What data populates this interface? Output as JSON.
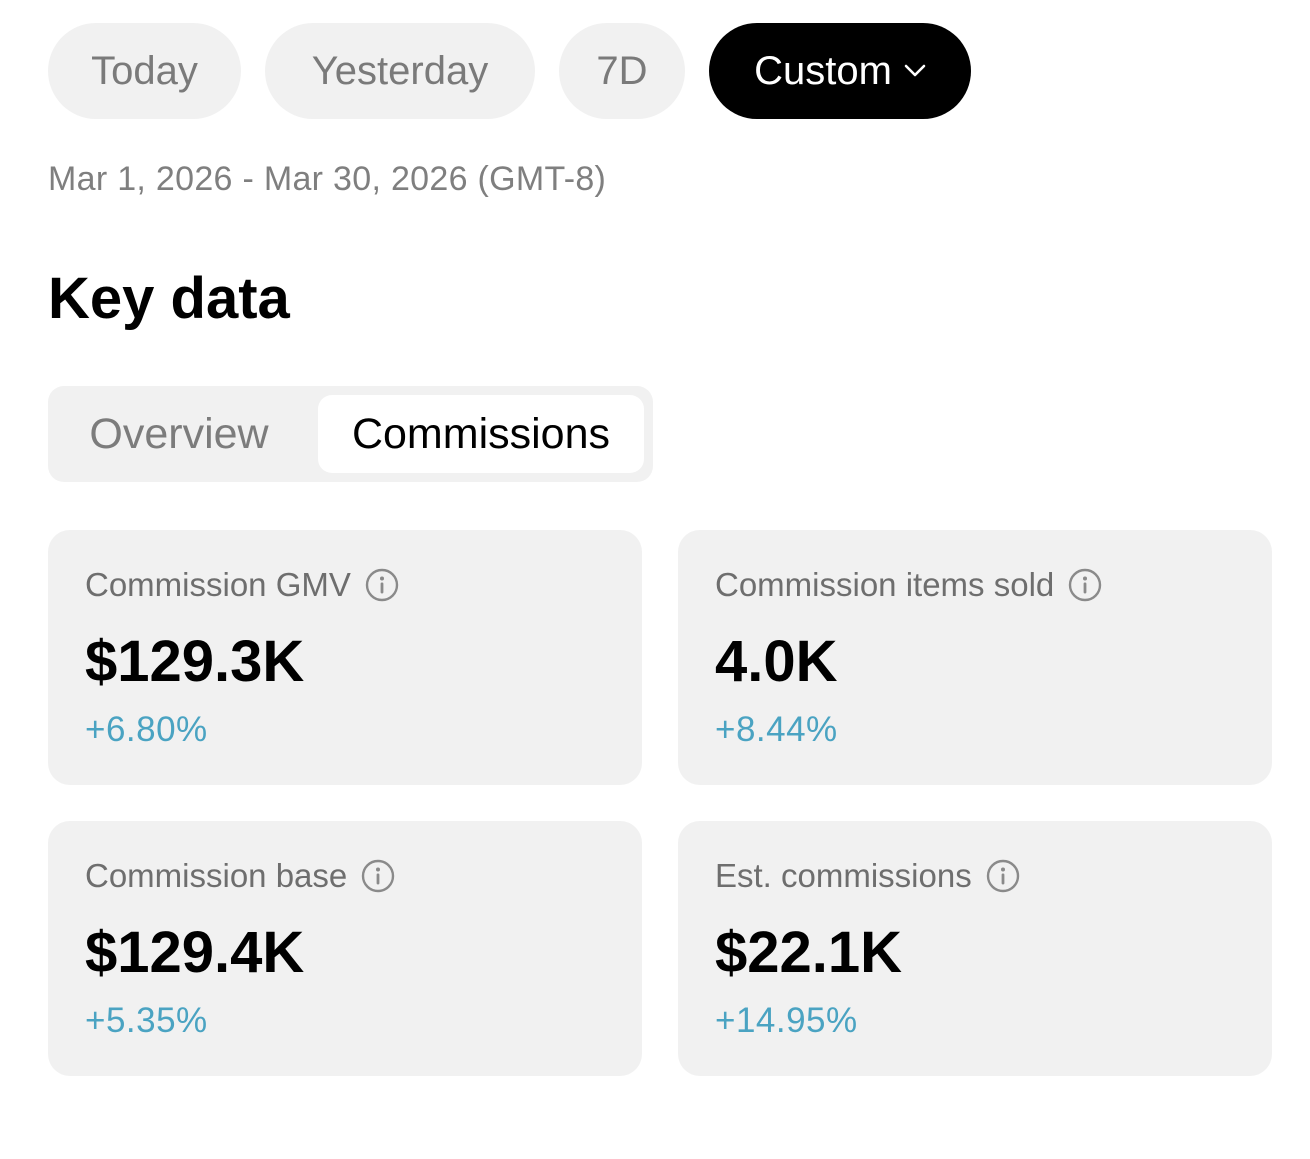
{
  "filters": {
    "today": "Today",
    "yesterday": "Yesterday",
    "seven_days": "7D",
    "custom": "Custom",
    "active": "Custom"
  },
  "date_range": "Mar 1, 2026 - Mar 30, 2026 (GMT-8)",
  "section_title": "Key data",
  "tabs": {
    "overview": "Overview",
    "commissions": "Commissions",
    "active": "Commissions"
  },
  "metrics": [
    {
      "label": "Commission GMV",
      "value": "$129.3K",
      "change": "+6.80%"
    },
    {
      "label": "Commission items sold",
      "value": "4.0K",
      "change": "+8.44%"
    },
    {
      "label": "Commission base",
      "value": "$129.4K",
      "change": "+5.35%"
    },
    {
      "label": "Est. commissions",
      "value": "$22.1K",
      "change": "+14.95%"
    }
  ],
  "colors": {
    "positive_change": "#4aa3c2",
    "active_pill": "#000000",
    "pill_bg": "#f1f1f1",
    "card_bg": "#f1f1f1"
  },
  "icons": {
    "info": "info-circle-icon",
    "custom_dropdown": "chevron-down-icon"
  }
}
